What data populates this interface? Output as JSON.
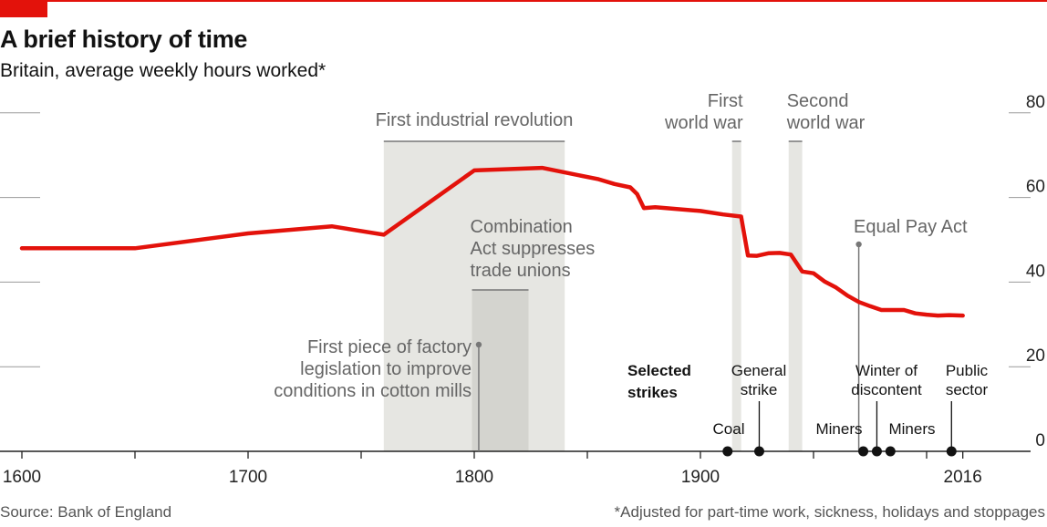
{
  "header": {
    "title": "A brief history of time",
    "subtitle": "Britain, average weekly hours worked*"
  },
  "footer": {
    "source": "Source: Bank of England",
    "footnote": "*Adjusted for part-time work, sickness, holidays and stoppages"
  },
  "colors": {
    "line": "#e3120b",
    "band": "#e6e6e2",
    "band_dark": "#d4d4cf",
    "grid": "#999999"
  },
  "chart_data": {
    "type": "line",
    "x_ticks": [
      "1600",
      "1700",
      "1800",
      "1900",
      "2016"
    ],
    "x_tick_values": [
      1600,
      1700,
      1800,
      1900,
      2016
    ],
    "y_ticks": [
      "0",
      "20",
      "40",
      "60",
      "80"
    ],
    "y_tick_values": [
      0,
      20,
      40,
      60,
      80
    ],
    "xlim": [
      1600,
      2048
    ],
    "ylim": [
      0,
      80
    ],
    "grid": "horizontal",
    "series": [
      {
        "values": [
          [
            1600,
            48
          ],
          [
            1650,
            48
          ],
          [
            1700,
            51.5
          ],
          [
            1737,
            53.2
          ],
          [
            1760,
            51.2
          ],
          [
            1800,
            66.4
          ],
          [
            1830,
            67
          ],
          [
            1855,
            64.3
          ],
          [
            1862,
            63.2
          ],
          [
            1869,
            62.4
          ],
          [
            1872,
            60.8
          ],
          [
            1875,
            57.5
          ],
          [
            1880,
            57.7
          ],
          [
            1900,
            56.8
          ],
          [
            1910,
            56
          ],
          [
            1918,
            55.5
          ],
          [
            1921,
            46.3
          ],
          [
            1925,
            46.2
          ],
          [
            1930,
            46.8
          ],
          [
            1935,
            46.9
          ],
          [
            1940,
            46.5
          ],
          [
            1945,
            42.5
          ],
          [
            1950,
            42.1
          ],
          [
            1955,
            40.1
          ],
          [
            1960,
            38.7
          ],
          [
            1965,
            36.8
          ],
          [
            1970,
            35.3
          ],
          [
            1975,
            34.3
          ],
          [
            1980,
            33.4
          ],
          [
            1985,
            33.4
          ],
          [
            1990,
            33.4
          ],
          [
            1995,
            32.6
          ],
          [
            2000,
            32.3
          ],
          [
            2005,
            32.1
          ],
          [
            2010,
            32.2
          ],
          [
            2016,
            32.1
          ]
        ]
      }
    ],
    "annotations": [
      {
        "type": "band",
        "label": "First industrial revolution",
        "from": 1760,
        "to": 1840
      },
      {
        "type": "band",
        "label": "Combination Act suppresses trade unions",
        "from": 1799,
        "to": 1824
      },
      {
        "type": "band",
        "label": "First world war",
        "from": 1914,
        "to": 1918
      },
      {
        "type": "band",
        "label": "Second world war",
        "from": 1939,
        "to": 1945
      },
      {
        "type": "event",
        "label": "First piece of factory legislation to improve conditions in cotton mills",
        "x": 1802
      },
      {
        "type": "event",
        "label": "Equal Pay Act",
        "x": 1970
      }
    ],
    "strikes_label": "Selected strikes",
    "strikes": [
      {
        "label": "Coal",
        "x": 1912
      },
      {
        "label": "General strike",
        "x": 1926
      },
      {
        "label": "Miners",
        "x": 1972
      },
      {
        "label": "Winter of discontent",
        "x": 1978
      },
      {
        "label": "Miners",
        "x": 1984
      },
      {
        "label": "Public sector",
        "x": 2011
      }
    ]
  }
}
